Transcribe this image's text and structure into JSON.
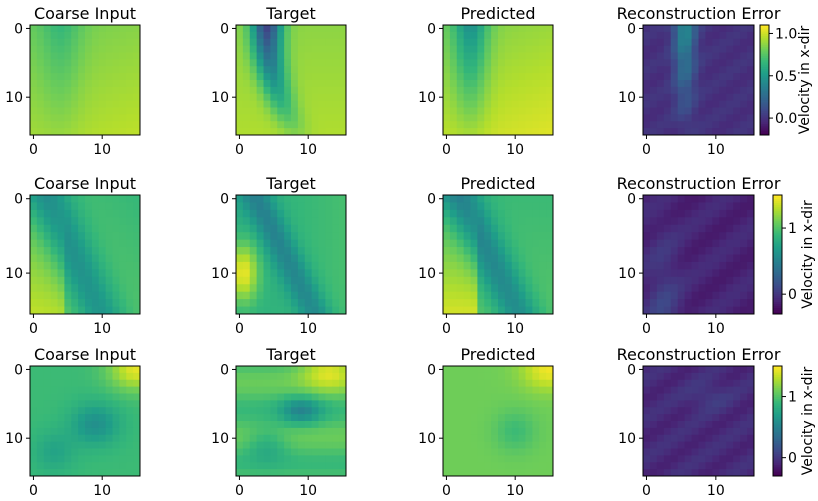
{
  "chart_data": {
    "type": "heatmap",
    "grid_size": 16,
    "colormap": "viridis",
    "x_ticks": [
      0,
      10
    ],
    "y_ticks": [
      0,
      10
    ],
    "colorbar_label": "Velocity in x-dir",
    "rows": [
      {
        "panels": [
          {
            "title": "Coarse Input",
            "kind": "coarse"
          },
          {
            "title": "Target",
            "kind": "target"
          },
          {
            "title": "Predicted",
            "kind": "pred"
          },
          {
            "title": "Reconstruction Error",
            "kind": "error"
          }
        ],
        "colorbar": {
          "range": [
            -0.2,
            1.1
          ],
          "ticks": [
            "1.0",
            "0.5",
            "0.0"
          ],
          "tick_values": [
            1.0,
            0.5,
            0.0
          ]
        }
      },
      {
        "panels": [
          {
            "title": "Coarse Input",
            "kind": "coarse"
          },
          {
            "title": "Target",
            "kind": "target"
          },
          {
            "title": "Predicted",
            "kind": "pred"
          },
          {
            "title": "Reconstruction Error",
            "kind": "error"
          }
        ],
        "colorbar": {
          "range": [
            -0.3,
            1.5
          ],
          "ticks": [
            "1",
            "0"
          ],
          "tick_values": [
            1,
            0
          ]
        }
      },
      {
        "panels": [
          {
            "title": "Coarse Input",
            "kind": "coarse"
          },
          {
            "title": "Target",
            "kind": "target"
          },
          {
            "title": "Predicted",
            "kind": "pred"
          },
          {
            "title": "Reconstruction Error",
            "kind": "error"
          }
        ],
        "colorbar": {
          "range": [
            -0.3,
            1.5
          ],
          "ticks": [
            "1",
            "0"
          ],
          "tick_values": [
            1,
            0
          ]
        }
      }
    ]
  }
}
